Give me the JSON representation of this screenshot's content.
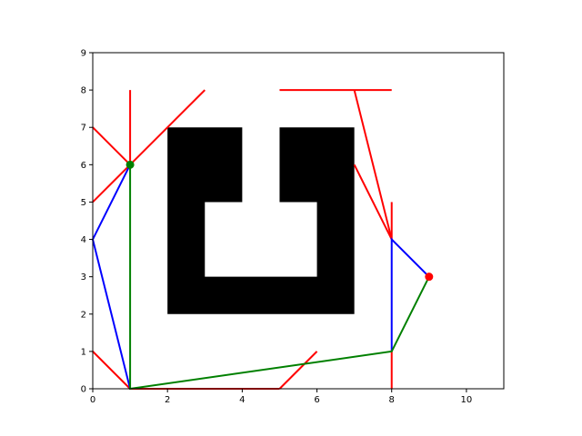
{
  "chart_data": {
    "type": "line",
    "xlim": [
      0,
      11
    ],
    "ylim": [
      0,
      9
    ],
    "x_ticks": [
      0,
      2,
      4,
      6,
      8,
      10
    ],
    "y_ticks": [
      0,
      1,
      2,
      3,
      4,
      5,
      6,
      7,
      8,
      9
    ],
    "grid": false,
    "obstacle": {
      "color": "#000000",
      "polygon": [
        [
          2,
          7
        ],
        [
          4,
          7
        ],
        [
          4,
          5
        ],
        [
          3,
          5
        ],
        [
          3,
          3
        ],
        [
          6,
          3
        ],
        [
          6,
          5
        ],
        [
          5,
          5
        ],
        [
          5,
          7
        ],
        [
          7,
          7
        ],
        [
          7,
          2
        ],
        [
          2,
          2
        ]
      ]
    },
    "red_segments": [
      [
        [
          1,
          6
        ],
        [
          1,
          8
        ]
      ],
      [
        [
          1,
          6
        ],
        [
          3,
          8
        ]
      ],
      [
        [
          0,
          7
        ],
        [
          1,
          6
        ]
      ],
      [
        [
          0,
          5
        ],
        [
          1,
          6
        ]
      ],
      [
        [
          5,
          8
        ],
        [
          8,
          8
        ]
      ],
      [
        [
          7,
          8
        ],
        [
          8,
          4
        ]
      ],
      [
        [
          7,
          6
        ],
        [
          8,
          4
        ]
      ],
      [
        [
          8,
          4
        ],
        [
          8,
          5
        ]
      ],
      [
        [
          8,
          0
        ],
        [
          8,
          1
        ]
      ],
      [
        [
          0,
          1
        ],
        [
          1,
          0
        ]
      ],
      [
        [
          1,
          0
        ],
        [
          5,
          0
        ]
      ],
      [
        [
          5,
          0
        ],
        [
          6,
          1
        ]
      ]
    ],
    "blue_path": [
      [
        1,
        6
      ],
      [
        0,
        4
      ],
      [
        1,
        0
      ]
    ],
    "blue_path_2": [
      [
        9,
        3
      ],
      [
        8,
        4
      ],
      [
        8,
        1
      ]
    ],
    "green_path": [
      [
        1,
        6
      ],
      [
        1,
        0
      ],
      [
        8,
        1
      ],
      [
        9,
        3
      ]
    ],
    "start_point": {
      "x": 1,
      "y": 6,
      "color": "#008000"
    },
    "goal_point": {
      "x": 9,
      "y": 3,
      "color": "#ff0000"
    },
    "colors": {
      "red": "#ff0000",
      "blue": "#0000ff",
      "green": "#008000"
    }
  }
}
